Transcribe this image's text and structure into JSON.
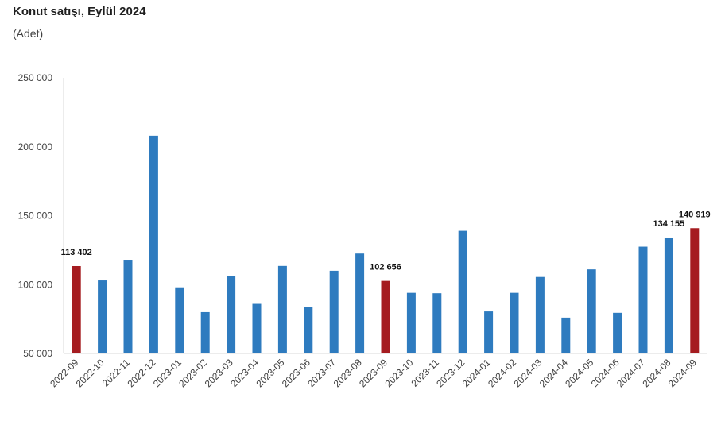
{
  "title": "Konut satışı, Eylül 2024",
  "subtitle": "(Adet)",
  "colors": {
    "regular": "#2e7bbf",
    "highlight": "#a51c20",
    "axis": "#d9d9d9"
  },
  "chart_data": {
    "type": "bar",
    "title": "Konut satışı, Eylül 2024",
    "subtitle": "(Adet)",
    "xlabel": "",
    "ylabel": "",
    "ylim": [
      50000,
      250000
    ],
    "yticks": [
      50000,
      100000,
      150000,
      200000,
      250000
    ],
    "ytick_labels": [
      "50 000",
      "100 000",
      "150 000",
      "200 000",
      "250 000"
    ],
    "grid": false,
    "legend": "none",
    "categories": [
      "2022-09",
      "2022-10",
      "2022-11",
      "2022-12",
      "2023-01",
      "2023-02",
      "2023-03",
      "2023-04",
      "2023-05",
      "2023-06",
      "2023-07",
      "2023-08",
      "2023-09",
      "2023-10",
      "2023-11",
      "2023-12",
      "2024-01",
      "2024-02",
      "2024-03",
      "2024-04",
      "2024-05",
      "2024-06",
      "2024-07",
      "2024-08",
      "2024-09"
    ],
    "values": [
      113402,
      103000,
      118000,
      208000,
      98000,
      80000,
      106000,
      86000,
      113500,
      84000,
      110000,
      122500,
      102656,
      94000,
      93700,
      139000,
      80500,
      94000,
      105500,
      76000,
      111000,
      79500,
      127500,
      134155,
      140919
    ],
    "highlighted": [
      0,
      12,
      24
    ],
    "data_labels": [
      {
        "index": 0,
        "text": "113 402"
      },
      {
        "index": 12,
        "text": "102 656"
      },
      {
        "index": 23,
        "text": "134 155"
      },
      {
        "index": 24,
        "text": "140 919"
      }
    ]
  }
}
